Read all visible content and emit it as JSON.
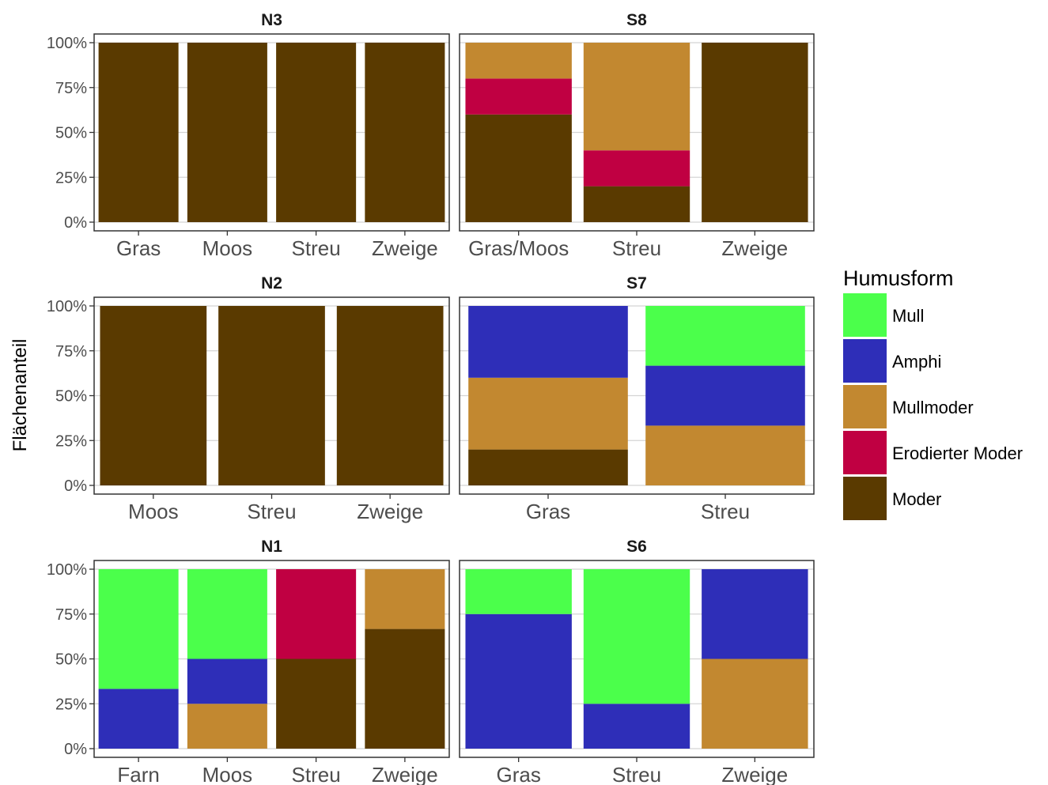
{
  "chart_data": {
    "type": "bar",
    "stacked": true,
    "ylabel": "Flächenanteil",
    "ylim": [
      0,
      1
    ],
    "y_ticks": [
      {
        "value": 0,
        "label": "0%"
      },
      {
        "value": 0.25,
        "label": "25%"
      },
      {
        "value": 0.5,
        "label": "50%"
      },
      {
        "value": 0.75,
        "label": "75%"
      },
      {
        "value": 1,
        "label": "100%"
      }
    ],
    "grid": true,
    "legend": {
      "title": "Humusform",
      "placement": "right",
      "items": [
        {
          "name": "Mull",
          "color": "#4BFF4B"
        },
        {
          "name": "Amphi",
          "color": "#2E2EB8"
        },
        {
          "name": "Mullmoder",
          "color": "#C28830"
        },
        {
          "name": "Erodierter Moder",
          "color": "#C00042"
        },
        {
          "name": "Moder",
          "color": "#5A3A00"
        }
      ]
    },
    "stack_order": [
      "Moder",
      "Erodierter Moder",
      "Mullmoder",
      "Amphi",
      "Mull"
    ],
    "panels": [
      {
        "name": "N3",
        "categories": [
          "Gras",
          "Moos",
          "Streu",
          "Zweige"
        ],
        "bars": [
          {
            "Moder": 1
          },
          {
            "Moder": 1
          },
          {
            "Moder": 1
          },
          {
            "Moder": 1
          }
        ]
      },
      {
        "name": "S8",
        "categories": [
          "Gras/Moos",
          "Streu",
          "Zweige"
        ],
        "bars": [
          {
            "Moder": 0.6,
            "Erodierter Moder": 0.2,
            "Mullmoder": 0.2
          },
          {
            "Moder": 0.2,
            "Erodierter Moder": 0.2,
            "Mullmoder": 0.6
          },
          {
            "Moder": 1
          }
        ]
      },
      {
        "name": "N2",
        "categories": [
          "Moos",
          "Streu",
          "Zweige"
        ],
        "bars": [
          {
            "Moder": 1
          },
          {
            "Moder": 1
          },
          {
            "Moder": 1
          }
        ]
      },
      {
        "name": "S7",
        "categories": [
          "Gras",
          "Streu"
        ],
        "bars": [
          {
            "Moder": 0.2,
            "Mullmoder": 0.4,
            "Amphi": 0.4
          },
          {
            "Mullmoder": 0.333,
            "Amphi": 0.334,
            "Mull": 0.333
          }
        ]
      },
      {
        "name": "N1",
        "categories": [
          "Farn",
          "Moos",
          "Streu",
          "Zweige"
        ],
        "bars": [
          {
            "Amphi": 0.333,
            "Mull": 0.667
          },
          {
            "Mullmoder": 0.25,
            "Amphi": 0.25,
            "Mull": 0.5
          },
          {
            "Moder": 0.5,
            "Erodierter Moder": 0.5
          },
          {
            "Moder": 0.667,
            "Mullmoder": 0.333
          }
        ]
      },
      {
        "name": "S6",
        "categories": [
          "Gras",
          "Streu",
          "Zweige"
        ],
        "bars": [
          {
            "Amphi": 0.75,
            "Mull": 0.25
          },
          {
            "Amphi": 0.25,
            "Mull": 0.75
          },
          {
            "Mullmoder": 0.5,
            "Amphi": 0.5
          }
        ]
      }
    ]
  }
}
